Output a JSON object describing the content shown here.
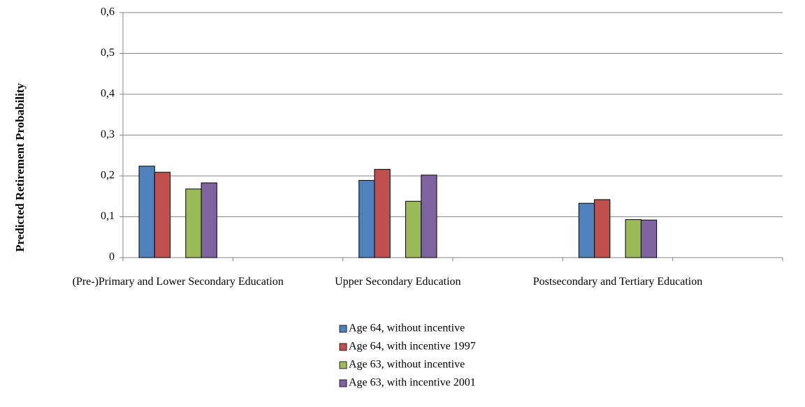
{
  "chart_data": {
    "type": "bar",
    "y_label": "Predicted Retirement Probability",
    "categories": [
      "(Pre-)Primary and Lower Secondary Education",
      null,
      "Upper Secondary Education",
      null,
      "Postsecondary and Tertiary Education",
      null
    ],
    "series": [
      {
        "name": "Age 64, without incentive",
        "color": "#4f81bd",
        "values": [
          0.224,
          null,
          0.189,
          null,
          0.133,
          null
        ]
      },
      {
        "name": "Age 64, with incentive 1997",
        "color": "#c0504d",
        "values": [
          0.209,
          null,
          0.216,
          null,
          0.142,
          null
        ]
      },
      {
        "name": "Age 63, without incentive",
        "color": "#9bbb59",
        "values": [
          0.168,
          null,
          0.138,
          null,
          0.093,
          null
        ]
      },
      {
        "name": "Age 63, with incentive 2001",
        "color": "#8064a2",
        "values": [
          0.183,
          null,
          0.202,
          null,
          0.092,
          null
        ]
      }
    ],
    "ylim": [
      0,
      0.6
    ],
    "yticks": [
      0,
      {
        "value": 0.1,
        "label": "0,1"
      },
      {
        "value": 0.2,
        "label": "0,2"
      },
      {
        "value": 0.3,
        "label": "0,3"
      },
      {
        "value": 0.4,
        "label": "0,4"
      },
      {
        "value": 0.5,
        "label": "0,5"
      },
      {
        "value": 0.6,
        "label": "0,6"
      }
    ],
    "grid": true,
    "legend": "bottom"
  }
}
